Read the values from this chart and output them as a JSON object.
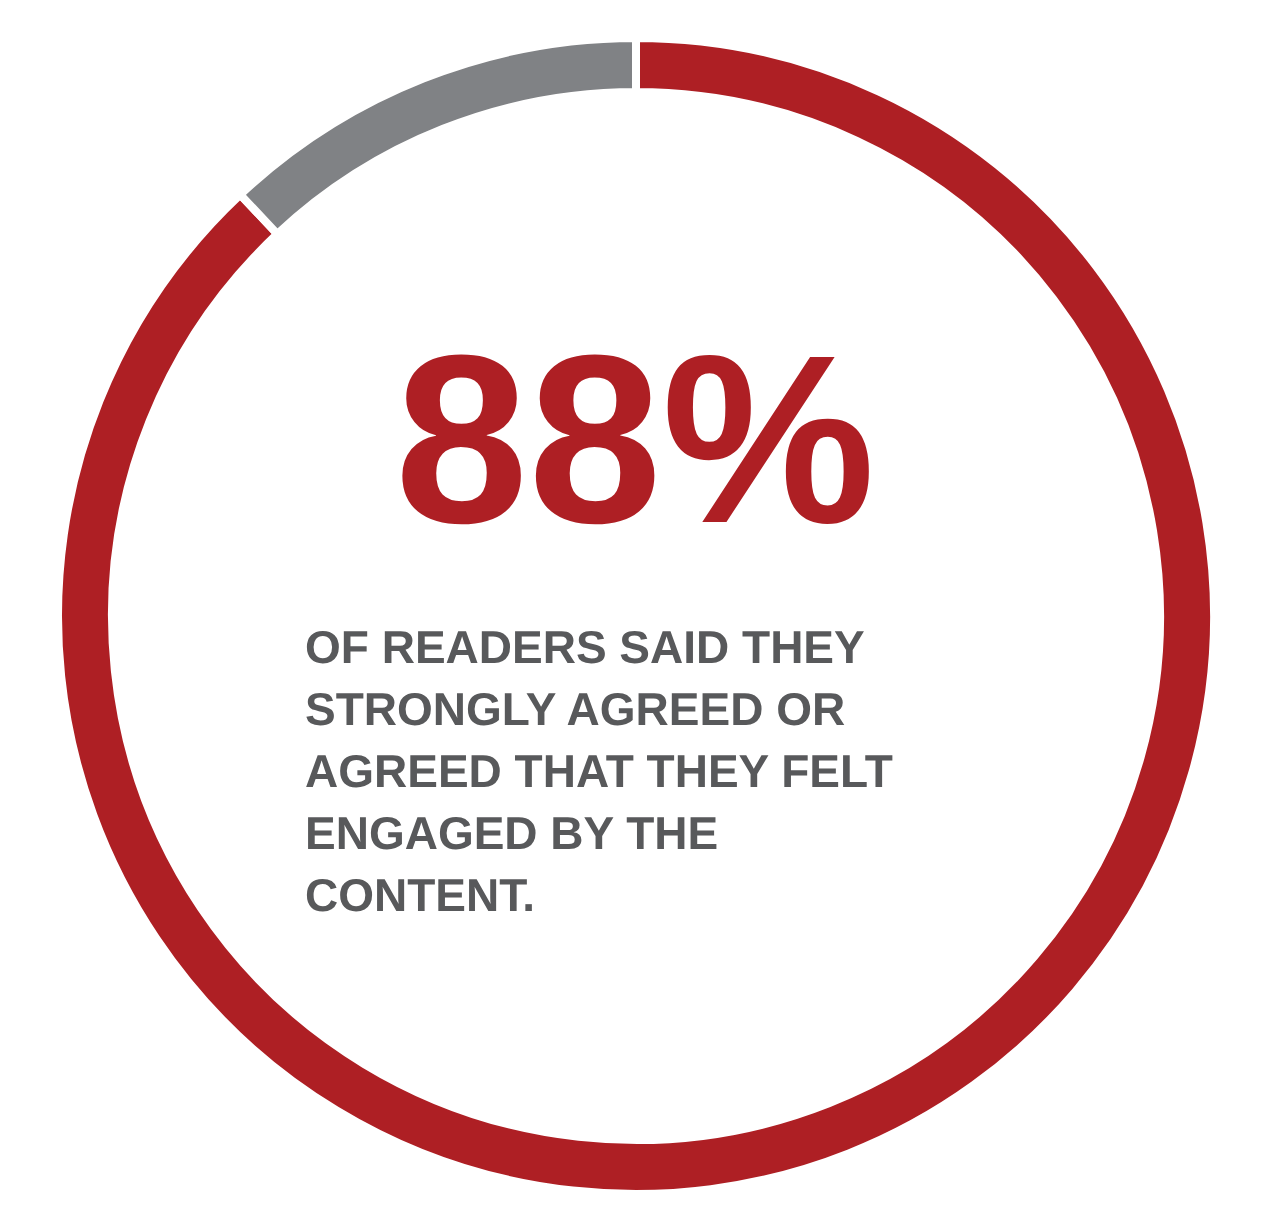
{
  "chart_data": {
    "type": "donut",
    "categories": [
      null,
      null
    ],
    "values": [
      88,
      12
    ],
    "colors": [
      "#ae1f24",
      "#808285"
    ],
    "value_labels": [
      "88%",
      null
    ],
    "annotations": [
      "OF READERS SAID THEY STRONGLY AGREED OR AGREED THAT THEY FELT ENGAGED BY THE CONTENT."
    ]
  }
}
